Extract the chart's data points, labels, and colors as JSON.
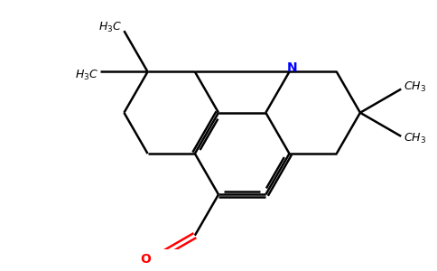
{
  "bg": "#ffffff",
  "bc": "#000000",
  "nc": "#0000ff",
  "oc": "#ff0000",
  "lw": 1.8,
  "fs": 9.0,
  "fig_w": 4.84,
  "fig_h": 3.0,
  "dpi": 100
}
